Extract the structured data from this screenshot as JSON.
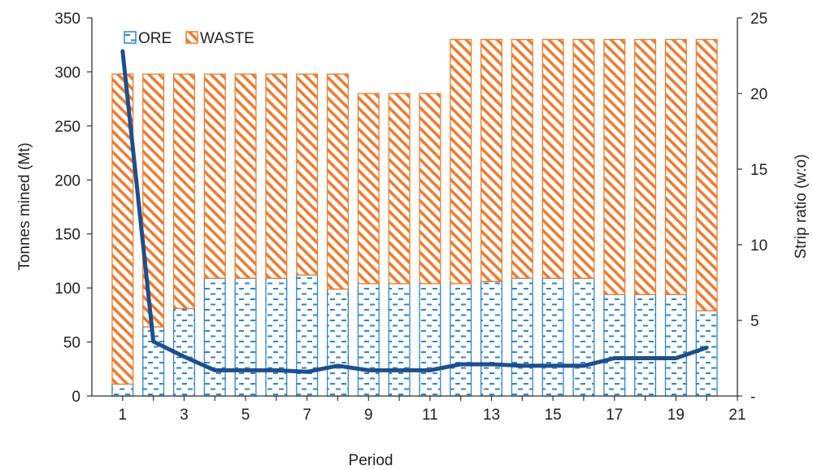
{
  "chart_data": {
    "type": "bar",
    "stacked": true,
    "xlabel": "Period",
    "ylabel": "Tonnes mined (Mt)",
    "y2label": "Strip ratio (w:o)",
    "ylim": [
      0,
      350
    ],
    "y2lim": [
      0,
      25
    ],
    "xlim": [
      0,
      21
    ],
    "x": [
      1,
      2,
      3,
      4,
      5,
      6,
      7,
      8,
      9,
      10,
      11,
      12,
      13,
      14,
      15,
      16,
      17,
      18,
      19,
      20
    ],
    "x_ticks": [
      "1",
      "3",
      "5",
      "7",
      "9",
      "11",
      "13",
      "15",
      "17",
      "19",
      "21"
    ],
    "y_ticks": [
      "0",
      "50",
      "100",
      "150",
      "200",
      "250",
      "300",
      "350"
    ],
    "y2_ticks": [
      "-",
      "5",
      "10",
      "15",
      "20",
      "25"
    ],
    "series": [
      {
        "name": "ORE",
        "kind": "bar",
        "color": "#2E86C8",
        "values": [
          11,
          64,
          81,
          109,
          109,
          109,
          112,
          99,
          104,
          104,
          104,
          104,
          106,
          109,
          109,
          109,
          94,
          94,
          94,
          79
        ]
      },
      {
        "name": "WASTE",
        "kind": "bar",
        "color": "#ED7D31",
        "values": [
          287,
          234,
          217,
          189,
          189,
          189,
          186,
          199,
          176,
          176,
          176,
          226,
          224,
          221,
          221,
          221,
          236,
          236,
          236,
          251
        ]
      },
      {
        "kind": "line",
        "axis": "right",
        "color": "#1F4E8C",
        "values": [
          22.8,
          3.6,
          2.6,
          1.7,
          1.7,
          1.7,
          1.6,
          2.0,
          1.7,
          1.7,
          1.7,
          2.1,
          2.1,
          2.0,
          2.0,
          2.0,
          2.5,
          2.5,
          2.5,
          3.2
        ]
      }
    ],
    "legend_position": "top-left",
    "grid": false
  }
}
